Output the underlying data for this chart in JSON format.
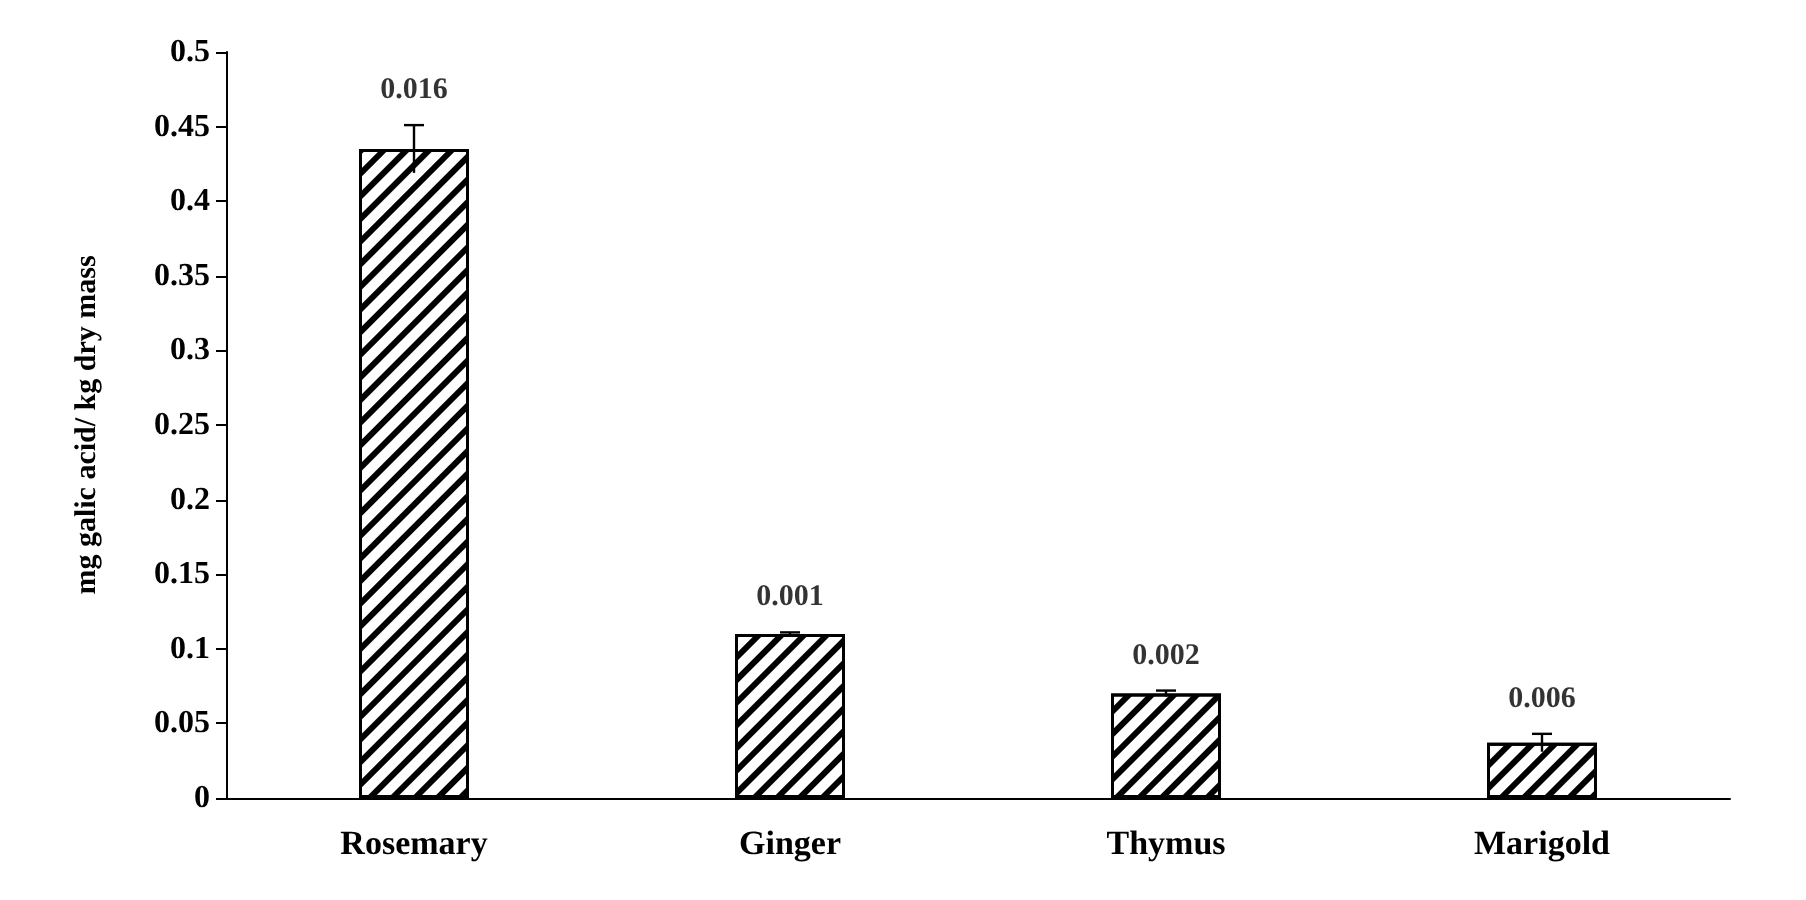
{
  "chart_data": {
    "type": "bar",
    "ylabel": "mg galic acid/ kg dry mass",
    "categories": [
      "Rosemary",
      "Ginger",
      "Thymus",
      "Marigold"
    ],
    "values": [
      0.435,
      0.11,
      0.07,
      0.037
    ],
    "errors": [
      0.016,
      0.001,
      0.002,
      0.006
    ],
    "annotations": [
      {
        "text": "0.016",
        "x": "Rosemary",
        "y": 0.451
      },
      {
        "text": "0.001",
        "x": "Ginger",
        "y": 0.111
      },
      {
        "text": "0.002",
        "x": "Thymus",
        "y": 0.072
      },
      {
        "text": "0.006",
        "x": "Marigold",
        "y": 0.043
      }
    ],
    "color": "#000000",
    "ylim": [
      0,
      0.5
    ],
    "yticks": [
      0,
      0.05,
      0.1,
      0.15,
      0.2,
      0.25,
      0.3,
      0.35,
      0.4,
      0.45,
      0.5
    ],
    "grid": false
  }
}
